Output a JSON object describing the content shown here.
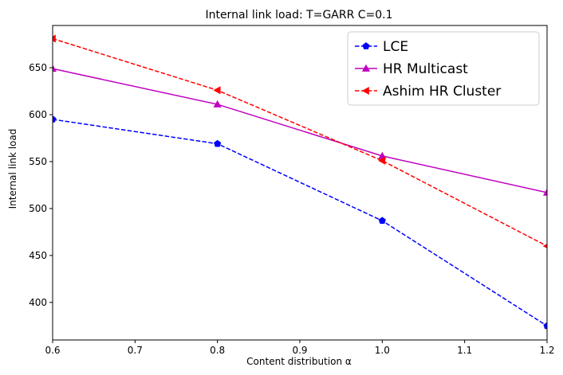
{
  "chart_data": {
    "type": "line",
    "title": "Internal link load: T=GARR C=0.1",
    "xlabel": "Content distribution α",
    "ylabel": "Internal link load",
    "xlim": [
      0.6,
      1.2
    ],
    "ylim": [
      360,
      695
    ],
    "x_ticks": [
      0.6,
      0.7,
      0.8,
      0.9,
      1.0,
      1.1,
      1.2
    ],
    "x_tick_labels": [
      "0.6",
      "0.7",
      "0.8",
      "0.9",
      "1.0",
      "1.1",
      "1.2"
    ],
    "y_ticks": [
      400,
      450,
      500,
      550,
      600,
      650
    ],
    "y_tick_labels": [
      "400",
      "450",
      "500",
      "550",
      "600",
      "650"
    ],
    "grid": false,
    "legend_position": "top-right",
    "x": [
      0.6,
      0.8,
      1.0,
      1.2
    ],
    "series": [
      {
        "name": "LCE",
        "values": [
          595,
          569,
          487,
          375
        ],
        "color": "#0000ff",
        "line_style": "dashed",
        "marker": "pentagon"
      },
      {
        "name": "HR Multicast",
        "values": [
          649,
          611,
          556,
          517
        ],
        "color": "#bf00bf",
        "line_style": "solid",
        "marker": "triangle-up"
      },
      {
        "name": "Ashim HR Cluster",
        "values": [
          681,
          626,
          551,
          460
        ],
        "color": "#ff0000",
        "line_style": "dashed",
        "marker": "triangle-left"
      }
    ]
  }
}
